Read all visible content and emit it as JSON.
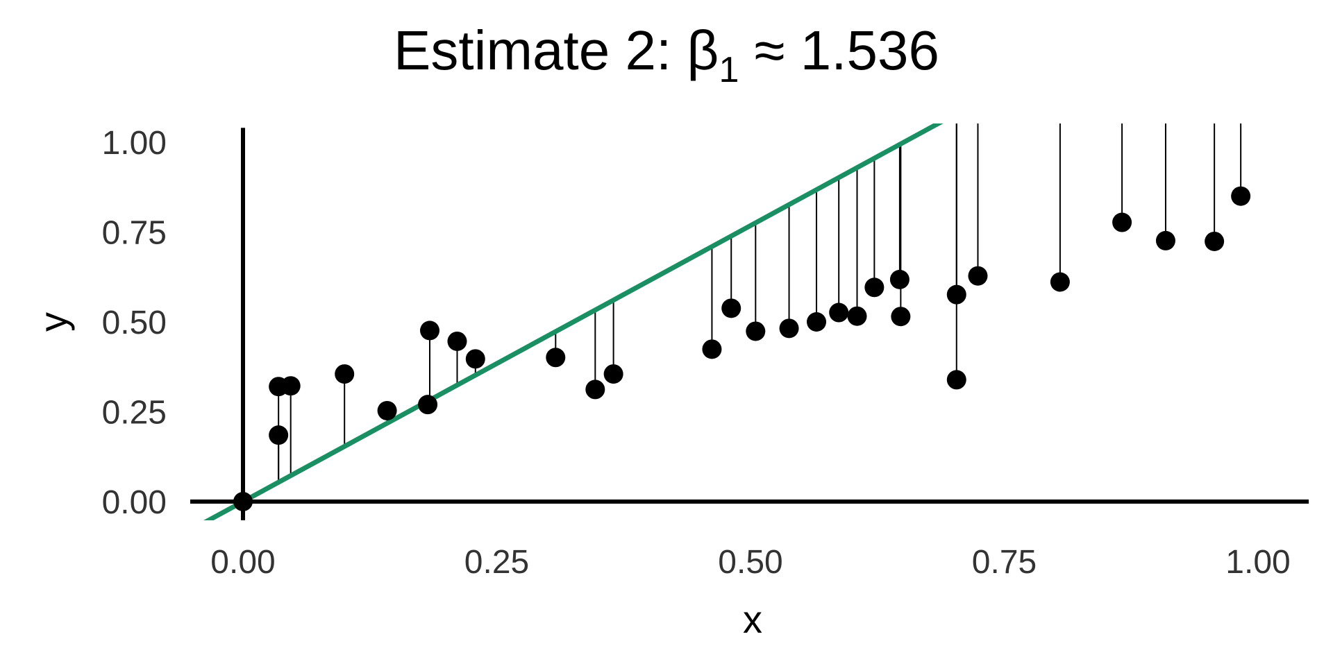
{
  "chart_data": {
    "type": "scatter",
    "title_main": "Estimate 2: β",
    "title_sub": "1",
    "title_tail": " ≈ 1.536",
    "xlabel": "x",
    "ylabel": "y",
    "xlim": [
      -0.05,
      1.05
    ],
    "ylim": [
      -0.05,
      1.05
    ],
    "xticks": [
      0,
      0.25,
      0.5,
      0.75,
      1
    ],
    "yticks": [
      0,
      0.25,
      0.5,
      0.75,
      1
    ],
    "x_tick_labels": [
      "0.00",
      "0.25",
      "0.50",
      "0.75",
      "1.00"
    ],
    "y_tick_labels": [
      "0.00",
      "0.25",
      "0.50",
      "0.75",
      "1.00"
    ],
    "grid": false,
    "fit_line": {
      "intercept": 0,
      "slope": 1.536,
      "color": "#1a8f64"
    },
    "residual_color": "#000000",
    "point_color": "#000000",
    "points": [
      {
        "x": 0.0,
        "y": 0.0
      },
      {
        "x": 0.035,
        "y": 0.32
      },
      {
        "x": 0.035,
        "y": 0.185
      },
      {
        "x": 0.047,
        "y": 0.322
      },
      {
        "x": 0.1,
        "y": 0.355
      },
      {
        "x": 0.142,
        "y": 0.253
      },
      {
        "x": 0.182,
        "y": 0.27
      },
      {
        "x": 0.184,
        "y": 0.476
      },
      {
        "x": 0.211,
        "y": 0.446
      },
      {
        "x": 0.229,
        "y": 0.397
      },
      {
        "x": 0.308,
        "y": 0.401
      },
      {
        "x": 0.347,
        "y": 0.312
      },
      {
        "x": 0.365,
        "y": 0.355
      },
      {
        "x": 0.462,
        "y": 0.424
      },
      {
        "x": 0.481,
        "y": 0.538
      },
      {
        "x": 0.505,
        "y": 0.474
      },
      {
        "x": 0.538,
        "y": 0.482
      },
      {
        "x": 0.565,
        "y": 0.5
      },
      {
        "x": 0.587,
        "y": 0.526
      },
      {
        "x": 0.605,
        "y": 0.516
      },
      {
        "x": 0.622,
        "y": 0.596
      },
      {
        "x": 0.647,
        "y": 0.618
      },
      {
        "x": 0.648,
        "y": 0.515
      },
      {
        "x": 0.703,
        "y": 0.576
      },
      {
        "x": 0.703,
        "y": 0.339
      },
      {
        "x": 0.724,
        "y": 0.628
      },
      {
        "x": 0.805,
        "y": 0.611
      },
      {
        "x": 0.866,
        "y": 0.777
      },
      {
        "x": 0.909,
        "y": 0.726
      },
      {
        "x": 0.957,
        "y": 0.724
      },
      {
        "x": 0.983,
        "y": 0.85
      }
    ]
  }
}
